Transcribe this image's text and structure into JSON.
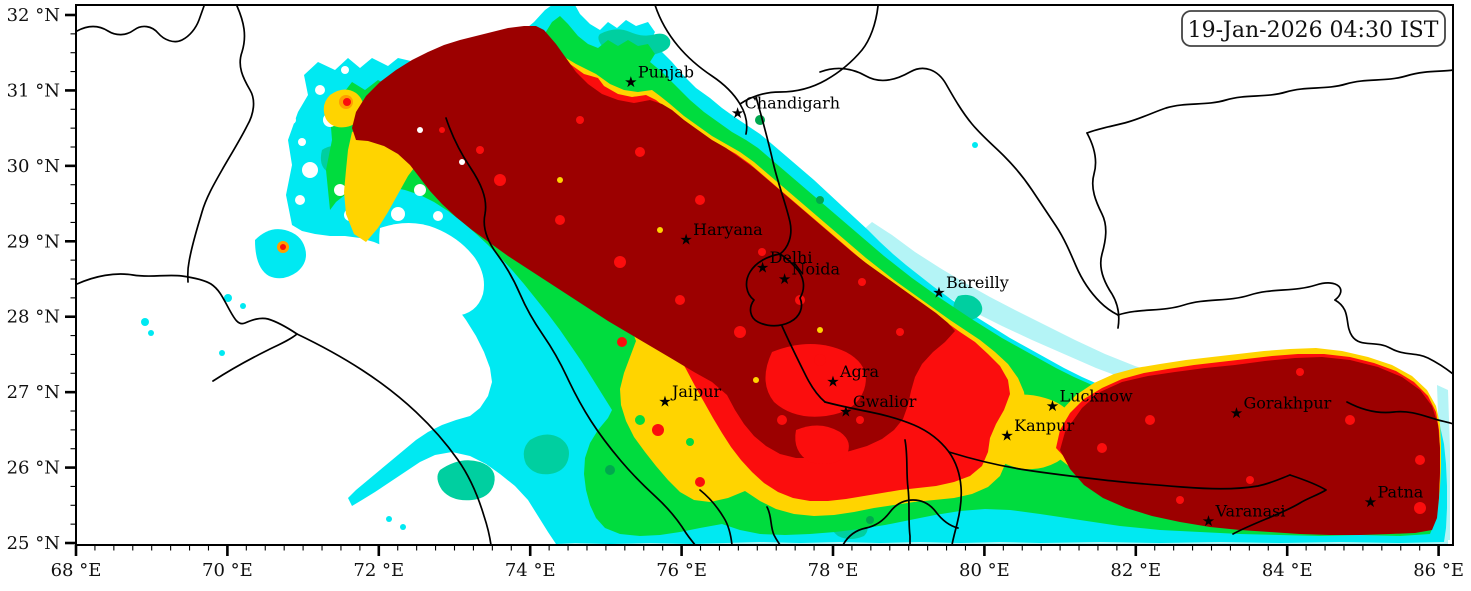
{
  "timestamp_box": {
    "text": "19-Jan-2026 04:30 IST"
  },
  "axes": {
    "x": {
      "tick_values": [
        68,
        70,
        72,
        74,
        76,
        78,
        80,
        82,
        84,
        86
      ],
      "tick_labels": [
        "68 °E",
        "70 °E",
        "72 °E",
        "74 °E",
        "76 °E",
        "78 °E",
        "80 °E",
        "82 °E",
        "84 °E",
        "86 °E"
      ],
      "minor_step": 0.25
    },
    "y": {
      "tick_values": [
        25,
        26,
        27,
        28,
        29,
        30,
        31,
        32
      ],
      "tick_labels": [
        "25 °N",
        "26 °N",
        "27 °N",
        "28 °N",
        "29 °N",
        "30 °N",
        "31 °N",
        "32 °N"
      ],
      "minor_step": 0.25
    },
    "extent": {
      "lon_min": 68,
      "lon_max": 86.19,
      "lat_min": 24.97,
      "lat_max": 32.13
    }
  },
  "cities": {
    "marker_glyph": "★",
    "items": [
      {
        "name": "Punjab",
        "lon": 75.33,
        "lat": 31.12
      },
      {
        "name": "Chandigarh",
        "lon": 76.74,
        "lat": 30.71
      },
      {
        "name": "Haryana",
        "lon": 76.06,
        "lat": 29.03
      },
      {
        "name": "Delhi",
        "lon": 77.07,
        "lat": 28.66
      },
      {
        "name": "Noida",
        "lon": 77.36,
        "lat": 28.51
      },
      {
        "name": "Bareilly",
        "lon": 79.4,
        "lat": 28.33
      },
      {
        "name": "Agra",
        "lon": 78.0,
        "lat": 27.15
      },
      {
        "name": "Jaipur",
        "lon": 75.78,
        "lat": 26.88
      },
      {
        "name": "Gwalior",
        "lon": 78.17,
        "lat": 26.75
      },
      {
        "name": "Lucknow",
        "lon": 80.9,
        "lat": 26.82
      },
      {
        "name": "Kanpur",
        "lon": 80.3,
        "lat": 26.43
      },
      {
        "name": "Gorakhpur",
        "lon": 83.33,
        "lat": 26.73
      },
      {
        "name": "Varanasi",
        "lon": 82.96,
        "lat": 25.3
      },
      {
        "name": "Patna",
        "lon": 85.1,
        "lat": 25.55
      }
    ]
  },
  "palette": {
    "background": "#ffffff",
    "pale_cyan": "#b4f4f6",
    "cyan": "#00e9f2",
    "teal": "#00cfa0",
    "green": "#00dc3e",
    "dark_green": "#00a84e",
    "yellow": "#ffd400",
    "orange": "#ff9e00",
    "red": "#fb0d0d",
    "dark_red": "#9c0000",
    "boundary": "#000000",
    "frame": "#000000"
  }
}
